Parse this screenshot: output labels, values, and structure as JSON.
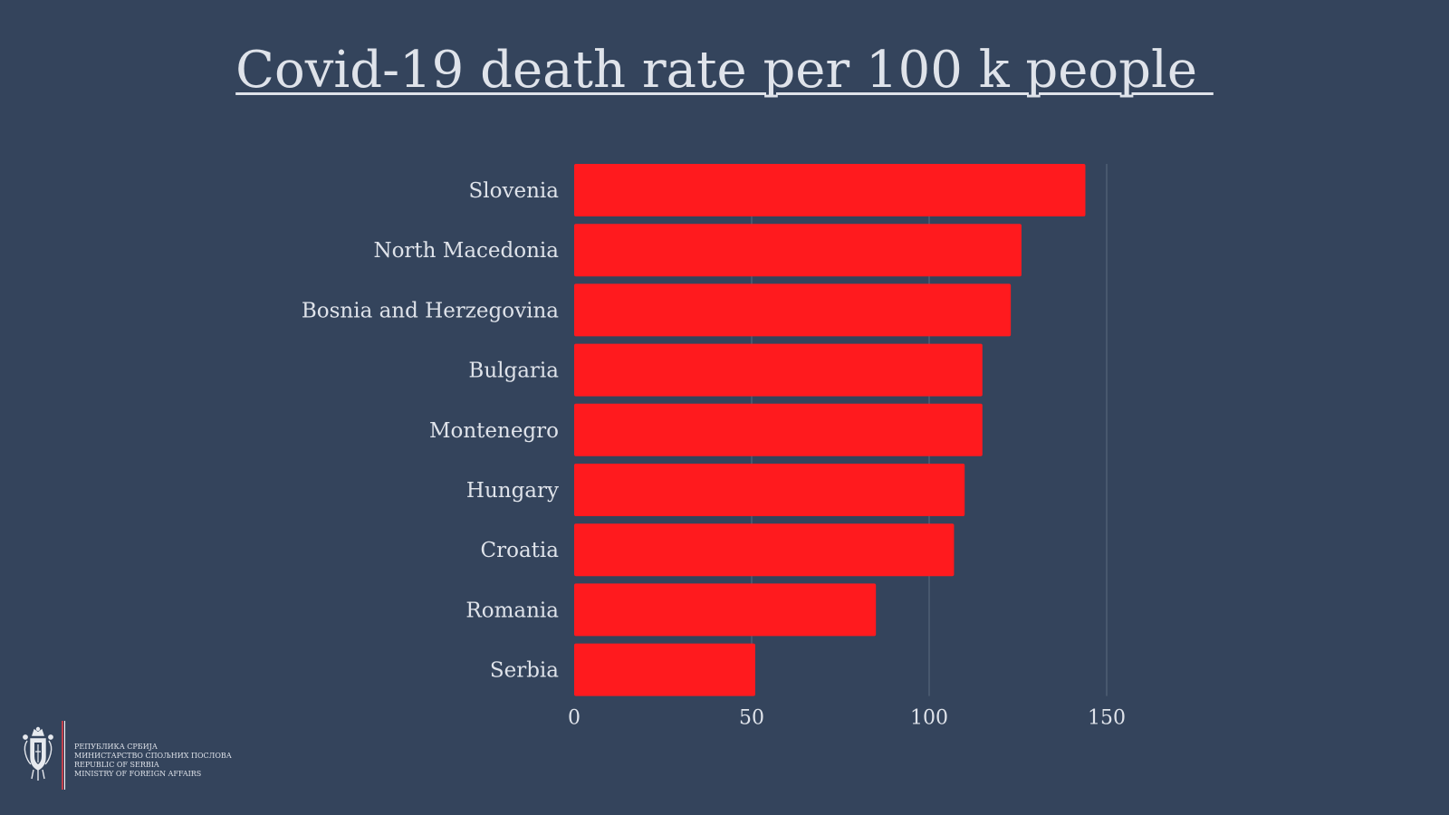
{
  "colors": {
    "background": "#34445c",
    "bar": "#ff1a1e",
    "text": "#dfe3ea",
    "gridline": "#566579"
  },
  "footer": {
    "emblem_icon": "serbian-coat-of-arms-icon",
    "lines": [
      "РЕПУБЛИКА СРБИЈА",
      "МИНИСТАРСТВО СПОЉНИХ ПОСЛОВА",
      "REPUBLIC OF SERBIA",
      "MINISTRY OF FOREIGN AFFAIRS"
    ]
  },
  "chart_data": {
    "type": "bar",
    "orientation": "horizontal",
    "title": "Covid-19 death rate per 100 k people ",
    "categories": [
      "Slovenia ",
      "North Macedonia ",
      "Bosnia and Herzegovina",
      "Bulgaria",
      "Montenegro",
      "Hungary",
      "Croatia",
      "Romania",
      "Serbia"
    ],
    "values": [
      144,
      126,
      123,
      115,
      115,
      110,
      107,
      85,
      51
    ],
    "xlim": [
      0,
      150
    ],
    "xticks": [
      0,
      50,
      100,
      150
    ],
    "grid": "vertical",
    "legend": "none"
  }
}
